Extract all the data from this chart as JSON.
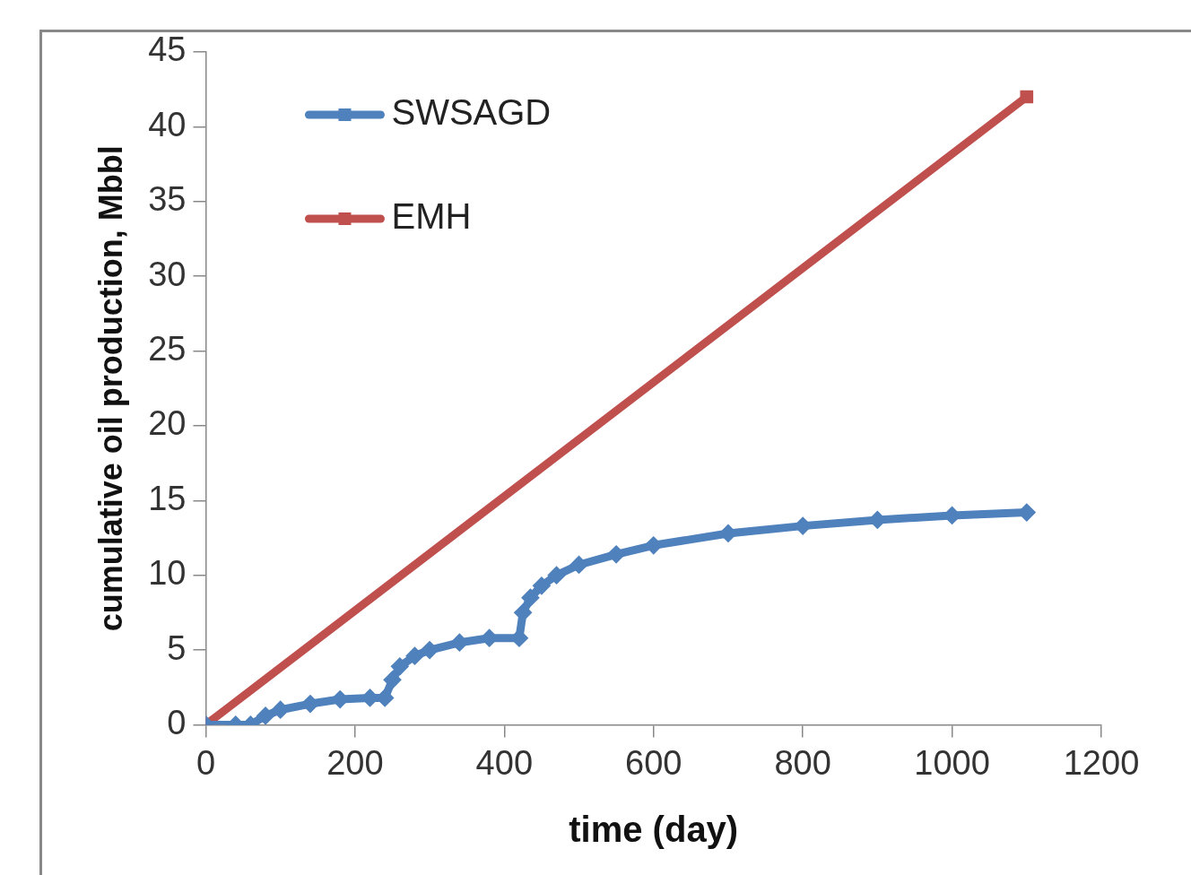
{
  "chart_data": {
    "type": "line",
    "xlabel": "time (day)",
    "ylabel": "cumulative oil production, Mbbl",
    "xlim": [
      0,
      1200
    ],
    "xticks": [
      0,
      200,
      400,
      600,
      800,
      1000,
      1200
    ],
    "ylim": [
      0,
      45
    ],
    "yticks": [
      0,
      5,
      10,
      15,
      20,
      25,
      30,
      35,
      40,
      45
    ],
    "grid": false,
    "legend": "top left",
    "line_style": "solid",
    "series": [
      {
        "name": "SWSAGD",
        "color": "#4f81bd",
        "marker": "diamond",
        "x": [
          0,
          40,
          60,
          80,
          100,
          140,
          180,
          220,
          240,
          250,
          260,
          280,
          300,
          340,
          380,
          420,
          425,
          435,
          450,
          470,
          500,
          550,
          600,
          700,
          800,
          900,
          1000,
          1100
        ],
        "values": [
          0,
          0,
          0,
          0.6,
          1.0,
          1.4,
          1.7,
          1.8,
          1.8,
          3.0,
          3.9,
          4.6,
          5.0,
          5.5,
          5.8,
          5.8,
          7.5,
          8.5,
          9.3,
          10.0,
          10.7,
          11.4,
          12.0,
          12.8,
          13.3,
          13.7,
          14.0,
          14.2
        ]
      },
      {
        "name": "EMH",
        "color": "#c0504d",
        "marker": "square",
        "x": [
          0,
          1100
        ],
        "values": [
          0,
          42
        ]
      }
    ]
  }
}
